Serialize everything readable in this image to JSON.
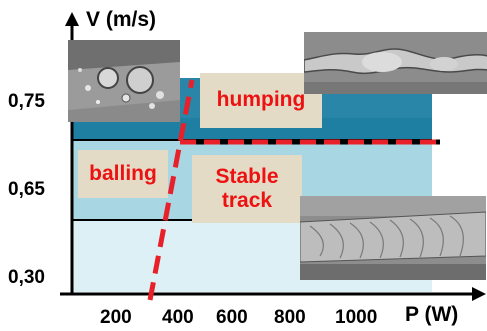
{
  "axes": {
    "y_title": "V (m/s)",
    "x_title": "P (W)",
    "y_ticks": [
      "0,75",
      "0,65",
      "0,30"
    ],
    "x_ticks": [
      "200",
      "400",
      "600",
      "800",
      "1000"
    ]
  },
  "regions": {
    "humping": "humping",
    "balling": "balling",
    "stable_line1": "Stable",
    "stable_line2": "track"
  },
  "colors": {
    "dark_band": "#1f7fa3",
    "mid_band": "#a9d6e3",
    "light_band": "#ddf0f5",
    "label_box": "#e3dbc6",
    "label_text": "#ee1111",
    "dashed_line": "#e8202a"
  }
}
